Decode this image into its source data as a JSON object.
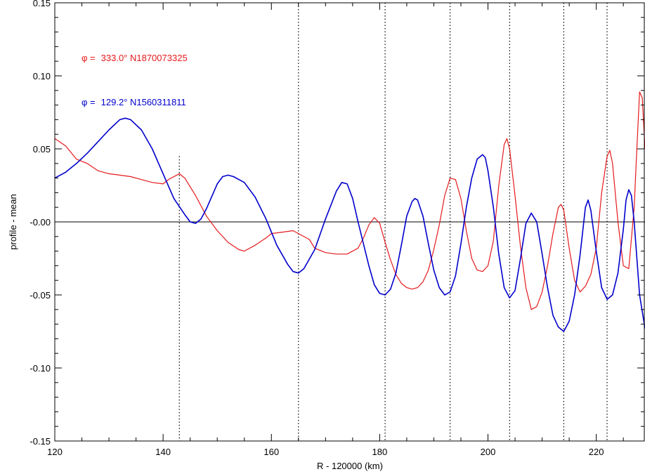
{
  "chart_data": {
    "type": "line",
    "xlabel": "R - 120000 (km)",
    "ylabel": "profile - mean",
    "xlim": [
      120,
      229
    ],
    "ylim": [
      -0.15,
      0.15
    ],
    "x_ticks": [
      120,
      140,
      160,
      180,
      200,
      220
    ],
    "y_ticks": [
      -0.15,
      -0.1,
      -0.05,
      0.0,
      0.05,
      0.1,
      0.15
    ],
    "y_tick_labels": [
      "-0.15",
      "-0.10",
      "-0.05",
      "-0.00",
      "0.05",
      "0.10",
      "0.15"
    ],
    "grid": false,
    "zero_line": true,
    "vertical_dotted_lines": [
      143,
      165,
      181,
      193,
      204,
      214,
      222
    ],
    "legend": [
      {
        "symbol": "φ =",
        "text": "333.0° N1870073325",
        "color": "#e41a1c"
      },
      {
        "symbol": "φ =",
        "text": "129.2° N1560311811",
        "color": "#0000cc"
      }
    ],
    "series": [
      {
        "color": "#e41a1c",
        "points": [
          [
            120,
            0.057
          ],
          [
            122,
            0.052
          ],
          [
            124,
            0.043
          ],
          [
            126,
            0.04
          ],
          [
            128,
            0.035
          ],
          [
            130,
            0.033
          ],
          [
            132,
            0.032
          ],
          [
            134,
            0.031
          ],
          [
            136,
            0.029
          ],
          [
            138,
            0.027
          ],
          [
            140,
            0.026
          ],
          [
            141,
            0.029
          ],
          [
            143,
            0.033
          ],
          [
            144,
            0.03
          ],
          [
            146,
            0.018
          ],
          [
            148,
            0.004
          ],
          [
            150,
            -0.006
          ],
          [
            152,
            -0.014
          ],
          [
            154,
            -0.019
          ],
          [
            155,
            -0.02
          ],
          [
            157,
            -0.016
          ],
          [
            159,
            -0.011
          ],
          [
            160,
            -0.008
          ],
          [
            162,
            -0.007
          ],
          [
            164,
            -0.006
          ],
          [
            165,
            -0.008
          ],
          [
            167,
            -0.012
          ],
          [
            168,
            -0.018
          ],
          [
            170,
            -0.021
          ],
          [
            172,
            -0.022
          ],
          [
            174,
            -0.022
          ],
          [
            176,
            -0.018
          ],
          [
            177,
            -0.011
          ],
          [
            178,
            -0.002
          ],
          [
            179,
            0.003
          ],
          [
            180,
            -0.001
          ],
          [
            181,
            -0.014
          ],
          [
            182,
            -0.026
          ],
          [
            183,
            -0.036
          ],
          [
            184,
            -0.042
          ],
          [
            185,
            -0.045
          ],
          [
            186,
            -0.046
          ],
          [
            187,
            -0.045
          ],
          [
            188,
            -0.041
          ],
          [
            189,
            -0.033
          ],
          [
            190,
            -0.019
          ],
          [
            191,
            -0.002
          ],
          [
            192,
            0.018
          ],
          [
            193,
            0.03
          ],
          [
            194,
            0.029
          ],
          [
            195,
            0.016
          ],
          [
            196,
            -0.006
          ],
          [
            197,
            -0.025
          ],
          [
            198,
            -0.033
          ],
          [
            199,
            -0.034
          ],
          [
            200,
            -0.03
          ],
          [
            201,
            -0.013
          ],
          [
            202,
            0.025
          ],
          [
            203,
            0.053
          ],
          [
            203.5,
            0.057
          ],
          [
            204,
            0.05
          ],
          [
            205,
            0.018
          ],
          [
            206,
            -0.017
          ],
          [
            207,
            -0.045
          ],
          [
            208,
            -0.06
          ],
          [
            209,
            -0.058
          ],
          [
            210,
            -0.048
          ],
          [
            211,
            -0.03
          ],
          [
            212,
            -0.008
          ],
          [
            213,
            0.01
          ],
          [
            213.5,
            0.012
          ],
          [
            214,
            0.008
          ],
          [
            215,
            -0.018
          ],
          [
            216,
            -0.04
          ],
          [
            217,
            -0.048
          ],
          [
            218,
            -0.044
          ],
          [
            219,
            -0.036
          ],
          [
            220,
            -0.018
          ],
          [
            221,
            0.02
          ],
          [
            222,
            0.045
          ],
          [
            222.5,
            0.049
          ],
          [
            223,
            0.04
          ],
          [
            224,
            0.0
          ],
          [
            225,
            -0.03
          ],
          [
            226,
            -0.032
          ],
          [
            227,
            0.01
          ],
          [
            227.5,
            0.05
          ],
          [
            228,
            0.089
          ],
          [
            228.5,
            0.085
          ],
          [
            229,
            0.05
          ]
        ]
      },
      {
        "color": "#0000cc",
        "points": [
          [
            120,
            0.03
          ],
          [
            122,
            0.034
          ],
          [
            124,
            0.04
          ],
          [
            126,
            0.047
          ],
          [
            128,
            0.055
          ],
          [
            130,
            0.063
          ],
          [
            132,
            0.07
          ],
          [
            133,
            0.071
          ],
          [
            134,
            0.07
          ],
          [
            136,
            0.063
          ],
          [
            138,
            0.05
          ],
          [
            140,
            0.033
          ],
          [
            142,
            0.016
          ],
          [
            144,
            0.005
          ],
          [
            145,
            0.0
          ],
          [
            146,
            -0.001
          ],
          [
            147,
            0.002
          ],
          [
            148,
            0.009
          ],
          [
            150,
            0.026
          ],
          [
            151,
            0.031
          ],
          [
            152,
            0.032
          ],
          [
            153,
            0.031
          ],
          [
            155,
            0.027
          ],
          [
            157,
            0.017
          ],
          [
            159,
            0.002
          ],
          [
            161,
            -0.016
          ],
          [
            163,
            -0.029
          ],
          [
            164,
            -0.034
          ],
          [
            165,
            -0.035
          ],
          [
            166,
            -0.032
          ],
          [
            168,
            -0.019
          ],
          [
            170,
            0.002
          ],
          [
            172,
            0.021
          ],
          [
            173,
            0.027
          ],
          [
            174,
            0.026
          ],
          [
            175,
            0.016
          ],
          [
            176,
            0.0
          ],
          [
            178,
            -0.03
          ],
          [
            179,
            -0.043
          ],
          [
            180,
            -0.049
          ],
          [
            181,
            -0.05
          ],
          [
            182,
            -0.046
          ],
          [
            183,
            -0.035
          ],
          [
            184,
            -0.016
          ],
          [
            185,
            0.004
          ],
          [
            186,
            0.014
          ],
          [
            186.5,
            0.016
          ],
          [
            187,
            0.015
          ],
          [
            188,
            0.004
          ],
          [
            189,
            -0.015
          ],
          [
            190,
            -0.033
          ],
          [
            191,
            -0.045
          ],
          [
            192,
            -0.05
          ],
          [
            193,
            -0.048
          ],
          [
            194,
            -0.037
          ],
          [
            195,
            -0.015
          ],
          [
            196,
            0.01
          ],
          [
            197,
            0.03
          ],
          [
            198,
            0.043
          ],
          [
            199,
            0.046
          ],
          [
            199.5,
            0.044
          ],
          [
            200,
            0.035
          ],
          [
            201,
            0.01
          ],
          [
            202,
            -0.022
          ],
          [
            203,
            -0.045
          ],
          [
            204,
            -0.052
          ],
          [
            205,
            -0.047
          ],
          [
            206,
            -0.025
          ],
          [
            207,
            -0.001
          ],
          [
            208,
            0.006
          ],
          [
            209,
            0.0
          ],
          [
            210,
            -0.022
          ],
          [
            211,
            -0.045
          ],
          [
            212,
            -0.064
          ],
          [
            213,
            -0.072
          ],
          [
            214,
            -0.075
          ],
          [
            215,
            -0.068
          ],
          [
            216,
            -0.05
          ],
          [
            217,
            -0.023
          ],
          [
            218,
            0.01
          ],
          [
            218.5,
            0.015
          ],
          [
            219,
            0.008
          ],
          [
            220,
            -0.02
          ],
          [
            221,
            -0.045
          ],
          [
            222,
            -0.053
          ],
          [
            223,
            -0.05
          ],
          [
            224,
            -0.035
          ],
          [
            225,
            -0.005
          ],
          [
            225.5,
            0.015
          ],
          [
            226,
            0.022
          ],
          [
            226.5,
            0.018
          ],
          [
            227,
            0.0
          ],
          [
            228,
            -0.05
          ],
          [
            229,
            -0.073
          ]
        ]
      }
    ]
  }
}
